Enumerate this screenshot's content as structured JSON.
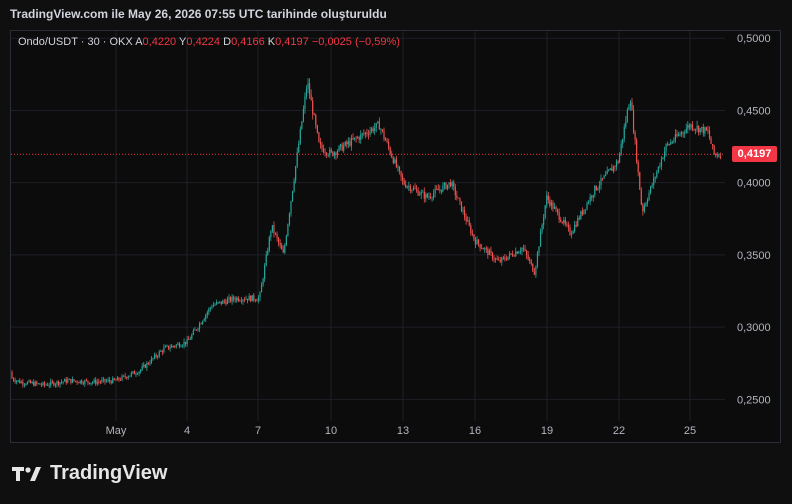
{
  "header": {
    "title": "TradingView.com ile May 26, 2026 07:55 UTC tarihinde oluşturuldu"
  },
  "legend": {
    "symbol": "Ondo/USDT · 30 · OKX",
    "o_label": "A",
    "o_value": "0,4220",
    "h_label": "Y",
    "h_value": "0,4224",
    "l_label": "D",
    "l_value": "0,4166",
    "c_label": "K",
    "c_value": "0,4197",
    "change": "−0,0025 (−0,59%)"
  },
  "current_price_label": "0,4197",
  "brand": {
    "name": "TradingView"
  },
  "colors": {
    "up": "#26a69a",
    "down": "#ef5350",
    "price_line": "#f23645",
    "background": "#0c0c0c"
  },
  "chart_data": {
    "type": "candlestick",
    "symbol": "Ondo/USDT",
    "interval": "30",
    "exchange": "OKX",
    "y_axis": {
      "min": 0.235,
      "max": 0.505,
      "ticks": [
        0.5,
        0.45,
        0.4,
        0.35,
        0.3,
        0.25
      ],
      "tick_labels": [
        "0,5000",
        "0,4500",
        "0,4000",
        "0,3500",
        "0,3000",
        "0,2500"
      ]
    },
    "x_axis": {
      "tick_labels": [
        "May",
        "4",
        "7",
        "10",
        "13",
        "16",
        "19",
        "22",
        "25"
      ]
    },
    "last_price": 0.4197,
    "price_path": [
      [
        "Apr 26",
        0.269
      ],
      [
        "Apr 27",
        0.262
      ],
      [
        "Apr 28",
        0.26
      ],
      [
        "Apr 29",
        0.263
      ],
      [
        "Apr 30",
        0.262
      ],
      [
        "May 1",
        0.263
      ],
      [
        "May 2",
        0.27
      ],
      [
        "May 3",
        0.285
      ],
      [
        "May 4",
        0.29
      ],
      [
        "May 5",
        0.315
      ],
      [
        "May 6",
        0.32
      ],
      [
        "May 7",
        0.32
      ],
      [
        "May 7 12:00",
        0.37
      ],
      [
        "May 8",
        0.35
      ],
      [
        "May 8 12:00",
        0.41
      ],
      [
        "May 9",
        0.47
      ],
      [
        "May 9 12:00",
        0.425
      ],
      [
        "May 10",
        0.42
      ],
      [
        "May 11",
        0.43
      ],
      [
        "May 12",
        0.44
      ],
      [
        "May 13",
        0.4
      ],
      [
        "May 14",
        0.39
      ],
      [
        "May 15",
        0.4
      ],
      [
        "May 16",
        0.36
      ],
      [
        "May 17",
        0.345
      ],
      [
        "May 18",
        0.355
      ],
      [
        "May 18 12:00",
        0.338
      ],
      [
        "May 19",
        0.39
      ],
      [
        "May 20",
        0.365
      ],
      [
        "May 21",
        0.395
      ],
      [
        "May 22",
        0.415
      ],
      [
        "May 22 12:00",
        0.46
      ],
      [
        "May 23",
        0.38
      ],
      [
        "May 24",
        0.425
      ],
      [
        "May 25",
        0.44
      ],
      [
        "May 25 18:00",
        0.435
      ],
      [
        "May 26",
        0.4197
      ]
    ]
  }
}
